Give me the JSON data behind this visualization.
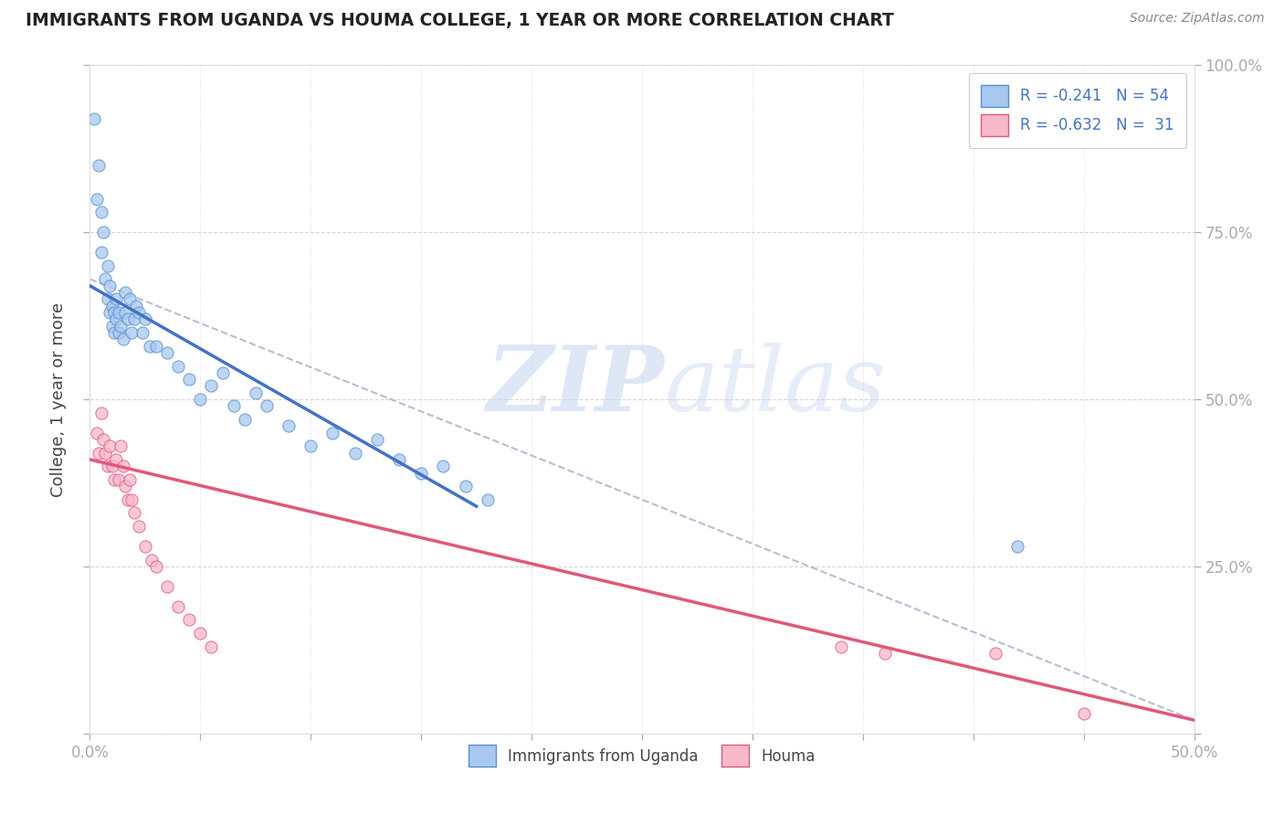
{
  "title": "IMMIGRANTS FROM UGANDA VS HOUMA COLLEGE, 1 YEAR OR MORE CORRELATION CHART",
  "source_text": "Source: ZipAtlas.com",
  "ylabel": "College, 1 year or more",
  "xlim": [
    0.0,
    0.5
  ],
  "ylim": [
    0.0,
    1.0
  ],
  "blue_color": "#A8C8F0",
  "blue_edge_color": "#5590D0",
  "blue_line_color": "#4472C4",
  "pink_color": "#F8B8C8",
  "pink_edge_color": "#E05880",
  "pink_line_color": "#E05878",
  "dash_color": "#AAAACC",
  "watermark_zip_color": "#C8D8F0",
  "watermark_atlas_color": "#B8C8E8",
  "blue_scatter_x": [
    0.002,
    0.003,
    0.004,
    0.005,
    0.005,
    0.006,
    0.007,
    0.008,
    0.008,
    0.009,
    0.009,
    0.01,
    0.01,
    0.011,
    0.011,
    0.012,
    0.012,
    0.013,
    0.013,
    0.014,
    0.015,
    0.016,
    0.016,
    0.017,
    0.018,
    0.019,
    0.02,
    0.021,
    0.022,
    0.024,
    0.025,
    0.027,
    0.03,
    0.035,
    0.04,
    0.045,
    0.05,
    0.055,
    0.06,
    0.065,
    0.07,
    0.075,
    0.08,
    0.09,
    0.1,
    0.11,
    0.12,
    0.13,
    0.14,
    0.15,
    0.16,
    0.17,
    0.18,
    0.42
  ],
  "blue_scatter_y": [
    0.92,
    0.8,
    0.85,
    0.78,
    0.72,
    0.75,
    0.68,
    0.7,
    0.65,
    0.63,
    0.67,
    0.61,
    0.64,
    0.6,
    0.63,
    0.62,
    0.65,
    0.6,
    0.63,
    0.61,
    0.59,
    0.63,
    0.66,
    0.62,
    0.65,
    0.6,
    0.62,
    0.64,
    0.63,
    0.6,
    0.62,
    0.58,
    0.58,
    0.57,
    0.55,
    0.53,
    0.5,
    0.52,
    0.54,
    0.49,
    0.47,
    0.51,
    0.49,
    0.46,
    0.43,
    0.45,
    0.42,
    0.44,
    0.41,
    0.39,
    0.4,
    0.37,
    0.35,
    0.28
  ],
  "pink_scatter_x": [
    0.003,
    0.004,
    0.005,
    0.006,
    0.007,
    0.008,
    0.009,
    0.01,
    0.011,
    0.012,
    0.013,
    0.014,
    0.015,
    0.016,
    0.017,
    0.018,
    0.019,
    0.02,
    0.022,
    0.025,
    0.028,
    0.03,
    0.035,
    0.04,
    0.045,
    0.05,
    0.055,
    0.34,
    0.36,
    0.41,
    0.45
  ],
  "pink_scatter_y": [
    0.45,
    0.42,
    0.48,
    0.44,
    0.42,
    0.4,
    0.43,
    0.4,
    0.38,
    0.41,
    0.38,
    0.43,
    0.4,
    0.37,
    0.35,
    0.38,
    0.35,
    0.33,
    0.31,
    0.28,
    0.26,
    0.25,
    0.22,
    0.19,
    0.17,
    0.15,
    0.13,
    0.13,
    0.12,
    0.12,
    0.03
  ],
  "blue_line_x0": 0.0,
  "blue_line_y0": 0.67,
  "blue_line_x1": 0.175,
  "blue_line_y1": 0.34,
  "pink_line_x0": 0.0,
  "pink_line_y0": 0.41,
  "pink_line_x1": 0.5,
  "pink_line_y1": 0.02,
  "dash_line_x0": 0.0,
  "dash_line_y0": 0.68,
  "dash_line_x1": 0.5,
  "dash_line_y1": 0.02
}
